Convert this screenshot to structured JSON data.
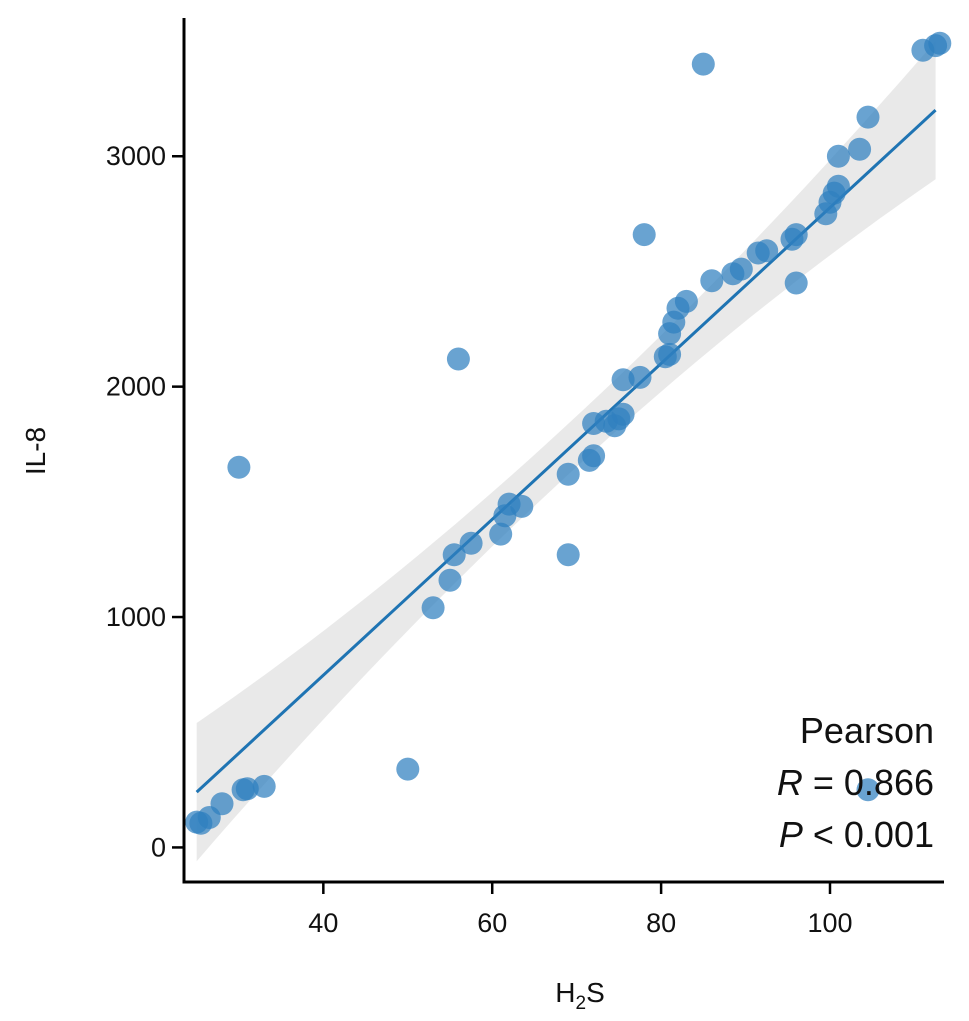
{
  "chart_data": {
    "type": "scatter",
    "xlabel": "H",
    "xlabel_sub": "2",
    "xlabel_tail": "S",
    "ylabel": "IL-8",
    "xlim": [
      23.5,
      113.5
    ],
    "ylim": [
      -150,
      3600
    ],
    "xticks": [
      40,
      60,
      80,
      100
    ],
    "yticks": [
      0,
      1000,
      2000,
      3000
    ],
    "grid": false,
    "point_color": "#2f7fbf",
    "line_color": "#1f74b3",
    "band_color": "#e2e2e2",
    "regression": {
      "x": [
        25,
        112.5
      ],
      "y": [
        240,
        3200
      ],
      "band_halfwidth_ends": 300,
      "band_halfwidth_mid": 110
    },
    "annotation": {
      "title": "Pearson",
      "r_symbol": "R",
      "r_rest": " = 0.866",
      "p_symbol": "P",
      "p_rest": " < 0.001"
    },
    "points": [
      [
        25,
        110
      ],
      [
        25.5,
        105
      ],
      [
        26.5,
        130
      ],
      [
        28,
        190
      ],
      [
        30.5,
        250
      ],
      [
        31,
        255
      ],
      [
        33,
        265
      ],
      [
        30,
        1650
      ],
      [
        50,
        340
      ],
      [
        53,
        1040
      ],
      [
        55,
        1160
      ],
      [
        55.5,
        1270
      ],
      [
        56,
        2120
      ],
      [
        57.5,
        1320
      ],
      [
        61,
        1360
      ],
      [
        61.5,
        1440
      ],
      [
        62,
        1490
      ],
      [
        63.5,
        1480
      ],
      [
        69,
        1270
      ],
      [
        69,
        1620
      ],
      [
        71.5,
        1680
      ],
      [
        72,
        1700
      ],
      [
        72,
        1840
      ],
      [
        73.5,
        1850
      ],
      [
        74.5,
        1830
      ],
      [
        75,
        1860
      ],
      [
        75.5,
        1880
      ],
      [
        75.5,
        2030
      ],
      [
        77.5,
        2040
      ],
      [
        78,
        2660
      ],
      [
        80.5,
        2130
      ],
      [
        81,
        2140
      ],
      [
        81,
        2230
      ],
      [
        81.5,
        2280
      ],
      [
        82,
        2340
      ],
      [
        83,
        2370
      ],
      [
        85,
        3400
      ],
      [
        86,
        2460
      ],
      [
        88.5,
        2490
      ],
      [
        89.5,
        2510
      ],
      [
        91.5,
        2580
      ],
      [
        92.5,
        2590
      ],
      [
        95.5,
        2640
      ],
      [
        96,
        2660
      ],
      [
        96,
        2450
      ],
      [
        99.5,
        2750
      ],
      [
        100,
        2800
      ],
      [
        100.5,
        2840
      ],
      [
        101,
        2870
      ],
      [
        101,
        3000
      ],
      [
        103.5,
        3030
      ],
      [
        104.5,
        3170
      ],
      [
        104.5,
        250
      ],
      [
        111,
        3460
      ],
      [
        112.5,
        3480
      ],
      [
        113,
        3490
      ]
    ]
  }
}
